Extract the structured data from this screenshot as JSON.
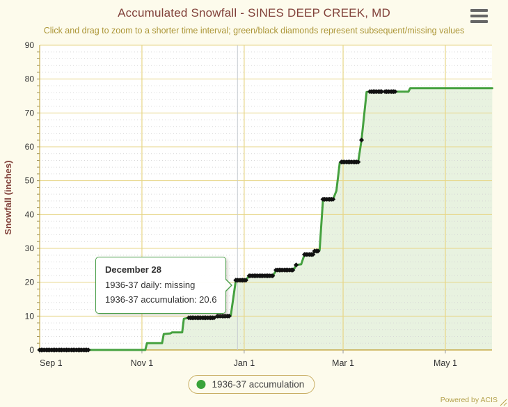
{
  "tooltip": {
    "date": "December 28",
    "line1": "1936-37 daily: missing",
    "line2": "1936-37 accumulation: 20.6"
  },
  "legend": {
    "items": [
      {
        "label": "1936-37 accumulation",
        "color": "#3aa33a"
      }
    ],
    "position": "bottom"
  },
  "footer": {
    "credit": "Powered by ACIS"
  },
  "menu": {
    "icon": "hamburger-menu-icon"
  },
  "colors": {
    "background": "#fdfbec",
    "plot_background": "#ffffff",
    "accent_green": "#45a13f",
    "fill_green": "#e8f2e0",
    "grid_gold": "#e7d687",
    "axis_gold": "#c6ab4a",
    "minor_grid_gray": "#d6d6d6",
    "title_maroon": "#81413a",
    "subtitle_gold": "#ac9637",
    "text_dark": "#333333",
    "diamond_black": "#111111",
    "crosshair_gray": "#c5cbd0",
    "legend_border": "#c8ad62"
  },
  "chart_data": {
    "type": "area",
    "title": "Accumulated Snowfall - SINES DEEP CREEK, MD",
    "subtitle": "Click and drag to zoom to a shorter time interval; green/black diamonds represent subsequent/missing values",
    "xlabel": "",
    "ylabel": "Snowfall (inches)",
    "ylim": [
      0,
      90
    ],
    "y_tick_interval": 10,
    "y_minor_interval": 2,
    "grid": "on",
    "legend_position": "bottom",
    "x_axis": {
      "ticks": [
        "Sep 1",
        "Nov 1",
        "Jan 1",
        "Mar 1",
        "May 1"
      ],
      "range_start": "Sep 1",
      "range_end": "May 29"
    },
    "crosshair_date": "Dec 28",
    "series": [
      {
        "name": "1936-37 accumulation",
        "color": "#45a13f",
        "points": [
          [
            "Sep 1",
            0
          ],
          [
            "Nov 3",
            0
          ],
          [
            "Nov 4",
            2.0
          ],
          [
            "Nov 13",
            2.0
          ],
          [
            "Nov 14",
            4.7
          ],
          [
            "Nov 18",
            4.9
          ],
          [
            "Nov 19",
            5.2
          ],
          [
            "Nov 25",
            5.2
          ],
          [
            "Nov 26",
            9.2
          ],
          [
            "Nov 29",
            9.5
          ],
          [
            "Dec 14",
            9.5
          ],
          [
            "Dec 16",
            10.0
          ],
          [
            "Dec 24",
            10.1
          ],
          [
            "Dec 27",
            20.6
          ],
          [
            "Jan 2",
            20.6
          ],
          [
            "Jan 4",
            21.9
          ],
          [
            "Jan 18",
            21.9
          ],
          [
            "Jan 20",
            23.4
          ],
          [
            "Jan 28",
            23.6
          ],
          [
            "Jan 31",
            24.1
          ],
          [
            "Feb 1",
            25.1
          ],
          [
            "Feb 4",
            25.3
          ],
          [
            "Feb 6",
            28.2
          ],
          [
            "Feb 11",
            28.3
          ],
          [
            "Feb 12",
            29.2
          ],
          [
            "Feb 15",
            29.5
          ],
          [
            "Feb 17",
            44.3
          ],
          [
            "Feb 23",
            44.5
          ],
          [
            "Feb 25",
            47.0
          ],
          [
            "Feb 27",
            55.3
          ],
          [
            "Mar 10",
            55.5
          ],
          [
            "Mar 12",
            62.0
          ],
          [
            "Mar 15",
            76.2
          ],
          [
            "Mar 17",
            76.3
          ],
          [
            "Apr 9",
            76.3
          ],
          [
            "Apr 10",
            77.3
          ],
          [
            "May 29",
            77.3
          ]
        ]
      }
    ],
    "missing_runs": [
      {
        "from": "Sep 1",
        "to": "Sep 30",
        "value": 0
      },
      {
        "from": "Nov 29",
        "to": "Dec 14",
        "value": 9.5
      },
      {
        "from": "Dec 16",
        "to": "Dec 23",
        "value": 10.0
      },
      {
        "from": "Dec 27",
        "to": "Jan 2",
        "value": 20.6
      },
      {
        "from": "Jan 4",
        "to": "Jan 18",
        "value": 21.9
      },
      {
        "from": "Jan 20",
        "to": "Jan 30",
        "value": 23.6
      },
      {
        "from": "Feb 1",
        "to": "Feb 1",
        "value": 25.1
      },
      {
        "from": "Feb 6",
        "to": "Feb 11",
        "value": 28.2
      },
      {
        "from": "Feb 12",
        "to": "Feb 14",
        "value": 29.2
      },
      {
        "from": "Feb 17",
        "to": "Feb 23",
        "value": 44.5
      },
      {
        "from": "Feb 28",
        "to": "Mar 10",
        "value": 55.5
      },
      {
        "from": "Mar 12",
        "to": "Mar 12",
        "value": 62.0
      },
      {
        "from": "Mar 17",
        "to": "Mar 24",
        "value": 76.3
      },
      {
        "from": "Mar 26",
        "to": "Apr 1",
        "value": 76.3
      }
    ]
  }
}
